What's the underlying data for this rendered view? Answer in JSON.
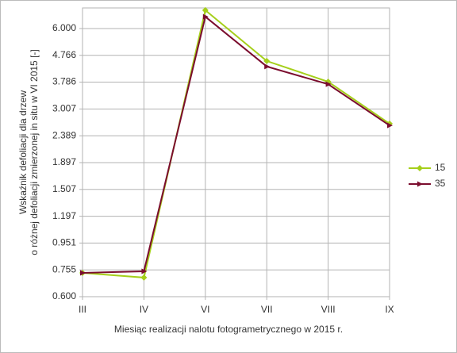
{
  "chart_data": {
    "type": "line",
    "ylabel": [
      "Wskaźnik defoliacji dla drzew",
      "o różnej defoliacji zmierzonej in situ w VI 2015 [-]"
    ],
    "xlabel": "Miesiąc realizacji nalotu fotogrametrycznego w 2015 r.",
    "categories": [
      "III",
      "IV",
      "VI",
      "VII",
      "VIII",
      "IX"
    ],
    "series": [
      {
        "name": "15",
        "color": "#a5cf1a",
        "marker": "diamond",
        "values": [
          0.736,
          0.707,
          7.02,
          4.54,
          3.8,
          2.65
        ]
      },
      {
        "name": "35",
        "color": "#7b0d2e",
        "marker": "triangle",
        "values": [
          0.736,
          0.746,
          6.64,
          4.33,
          3.72,
          2.61
        ]
      }
    ],
    "ylim": [
      0.6,
      7.16
    ],
    "yticks": [
      {
        "value": 0.6,
        "label": "0.600"
      },
      0.755,
      0.951,
      1.197,
      1.507,
      1.897,
      2.389,
      3.007,
      3.786,
      4.766,
      {
        "value": 6,
        "label": "6.000"
      }
    ],
    "log_scale": true,
    "grid": true,
    "legend": "right"
  }
}
